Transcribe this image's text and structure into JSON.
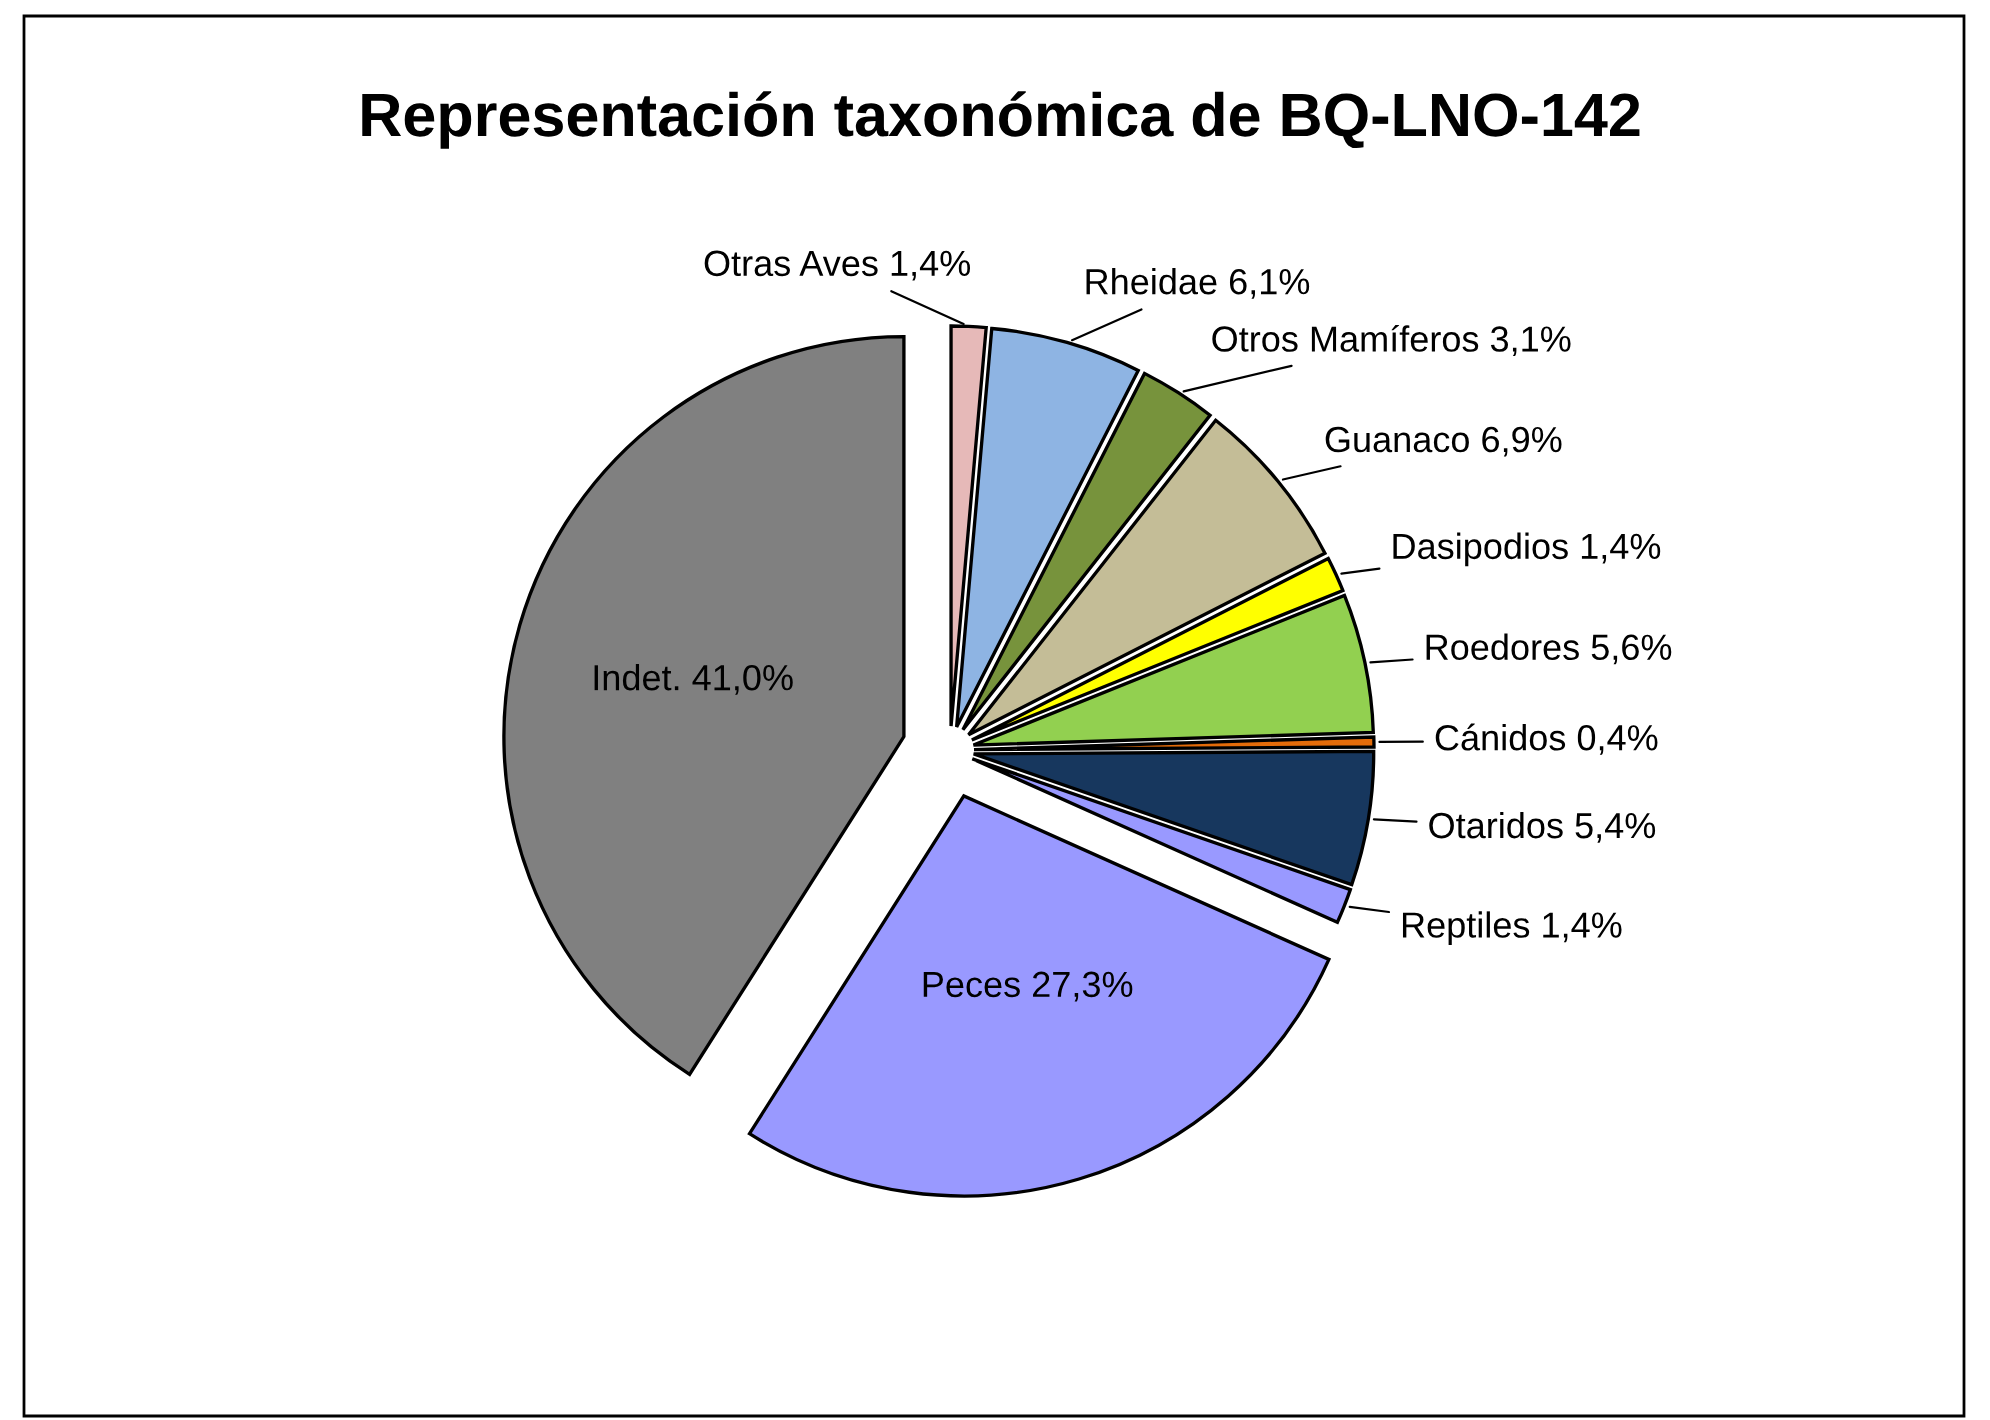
{
  "chart_data": {
    "type": "pie",
    "title": "Representación taxonómica de BQ-LNO-142",
    "categories": [
      "Otras Aves",
      "Rheidae",
      "Otros Mamíferos",
      "Guanaco",
      "Dasipodios",
      "Roedores",
      "Cánidos",
      "Otaridos",
      "Reptiles",
      "Peces",
      "Indet."
    ],
    "values": [
      1.4,
      6.1,
      3.1,
      6.9,
      1.4,
      5.6,
      0.4,
      5.4,
      1.4,
      27.3,
      41.0
    ],
    "value_labels": [
      "1,4%",
      "6,1%",
      "3,1%",
      "6,9%",
      "1,4%",
      "5,6%",
      "0,4%",
      "5,4%",
      "1,4%",
      "27,3%",
      "41,0%"
    ],
    "colors": [
      "#e6b9b8",
      "#8eb4e3",
      "#77933c",
      "#c4bd97",
      "#ffff00",
      "#92d050",
      "#e46c0a",
      "#17375e",
      "#9999ff",
      "#9999ff",
      "#808080"
    ],
    "legend": false
  }
}
